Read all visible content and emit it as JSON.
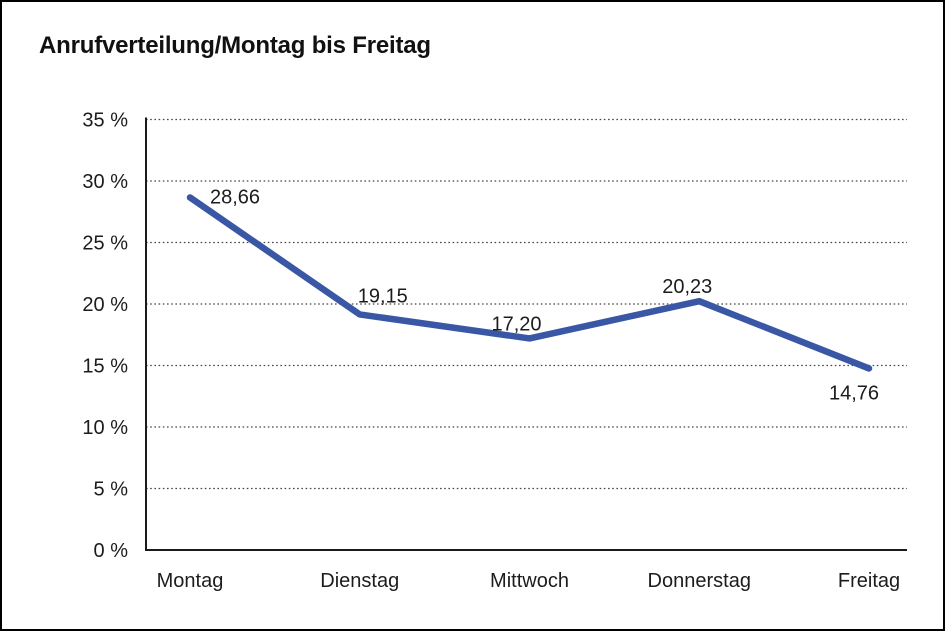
{
  "page": {
    "background": "#ffffff",
    "border_color": "#000000"
  },
  "chart_data": {
    "type": "line",
    "title": "Anrufverteilung/Montag bis Freitag",
    "categories": [
      "Montag",
      "Dienstag",
      "Mittwoch",
      "Donnerstag",
      "Freitag"
    ],
    "series": [
      {
        "name": "Anrufverteilung",
        "values": [
          28.66,
          19.15,
          17.2,
          20.23,
          14.76
        ],
        "data_labels": [
          "28,66",
          "19,15",
          "17,20",
          "20,23",
          "14,76"
        ]
      }
    ],
    "xlabel": "",
    "ylabel": "",
    "y_unit": "%",
    "ylim": [
      0,
      35
    ],
    "y_tick_step": 5,
    "y_tick_labels": [
      "0 %",
      "5 %",
      "10 %",
      "15 %",
      "20 %",
      "25 %",
      "30 %",
      "35 %"
    ],
    "grid": "horizontal-dotted",
    "legend": "none",
    "line_color": "#3A57A6",
    "axis_color": "#1a1a1a",
    "grid_color": "#464646",
    "label_color": "#1c1c1c"
  }
}
